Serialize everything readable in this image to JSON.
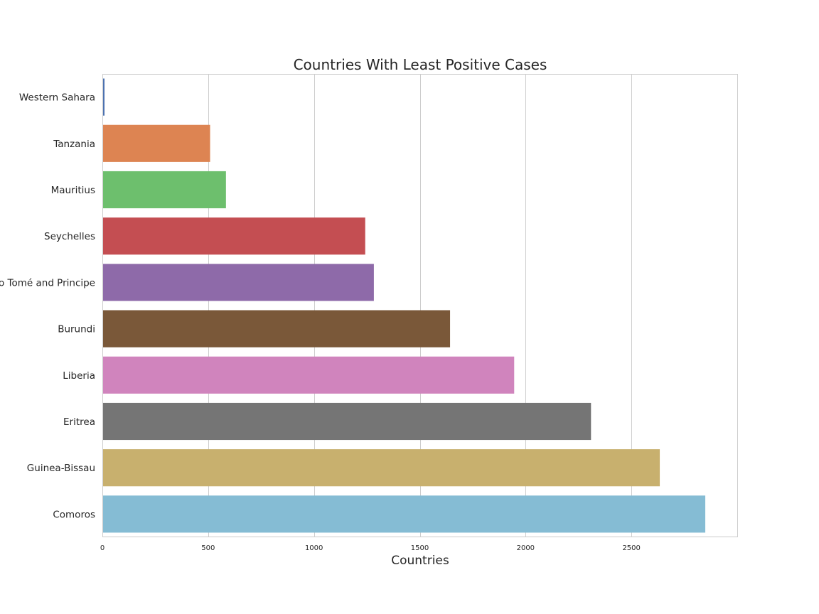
{
  "chart_data": {
    "type": "bar",
    "orientation": "horizontal",
    "title": "Countries With Least Positive Cases",
    "xlabel": "Countries",
    "ylabel": "",
    "categories": [
      "Western Sahara",
      "Tanzania",
      "Mauritius",
      "Seychelles",
      "São Tomé and Principe",
      "Burundi",
      "Liberia",
      "Eritrea",
      "Guinea-Bissau",
      "Comoros"
    ],
    "values": [
      10,
      509,
      584,
      1242,
      1283,
      1643,
      1946,
      2309,
      2634,
      2849
    ],
    "colors": [
      "#4c72b0",
      "#dd8452",
      "#6dbf6d",
      "#c44e52",
      "#8e6aa9",
      "#7a5839",
      "#d084bd",
      "#757575",
      "#c8b06e",
      "#85bcd4"
    ],
    "xlim": [
      0,
      3000
    ],
    "xticks": [
      0,
      500,
      1000,
      1500,
      2000,
      2500
    ],
    "grid": true
  }
}
